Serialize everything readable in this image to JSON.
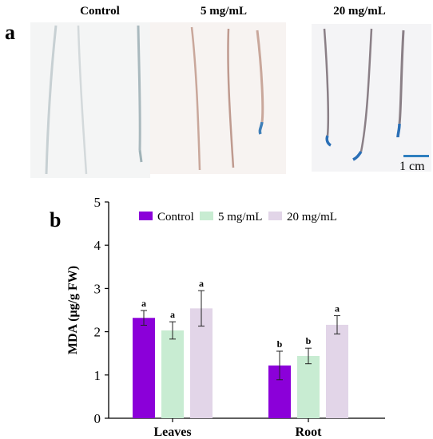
{
  "panel_a": {
    "letter": "a",
    "columns": [
      {
        "title": "Control",
        "root_color": "#b9c7cc",
        "tip_color": "#9fb3b8"
      },
      {
        "title": "5 mg/mL",
        "root_color": "#c9a79b",
        "tip_color": "#3f7fb8"
      },
      {
        "title": "20 mg/mL",
        "root_color": "#9a7f7a",
        "tip_color": "#2a6fb6"
      }
    ],
    "scale_bar": {
      "label": "1 cm",
      "color": "#2f7fbf"
    }
  },
  "chart_data": {
    "type": "bar",
    "panel_letter": "b",
    "categories": [
      "Leaves",
      "Root"
    ],
    "ylabel": "MDA (μg/g FW)",
    "xlabel": "",
    "ylim": [
      0,
      5
    ],
    "yticks": [
      0,
      1,
      2,
      3,
      4,
      5
    ],
    "legend_position": "top-center",
    "series": [
      {
        "name": "Control",
        "color": "#8b00d9",
        "values": [
          2.32,
          1.22
        ],
        "errors": [
          0.17,
          0.33
        ],
        "letters": [
          "a",
          "b"
        ]
      },
      {
        "name": "5 mg/mL",
        "color": "#c8ecd2",
        "values": [
          2.03,
          1.44
        ],
        "errors": [
          0.2,
          0.18
        ],
        "letters": [
          "a",
          "b"
        ]
      },
      {
        "name": "20 mg/mL",
        "color": "#e2d5e8",
        "values": [
          2.54,
          2.16
        ],
        "errors": [
          0.41,
          0.21
        ],
        "letters": [
          "a",
          "a"
        ]
      }
    ]
  }
}
